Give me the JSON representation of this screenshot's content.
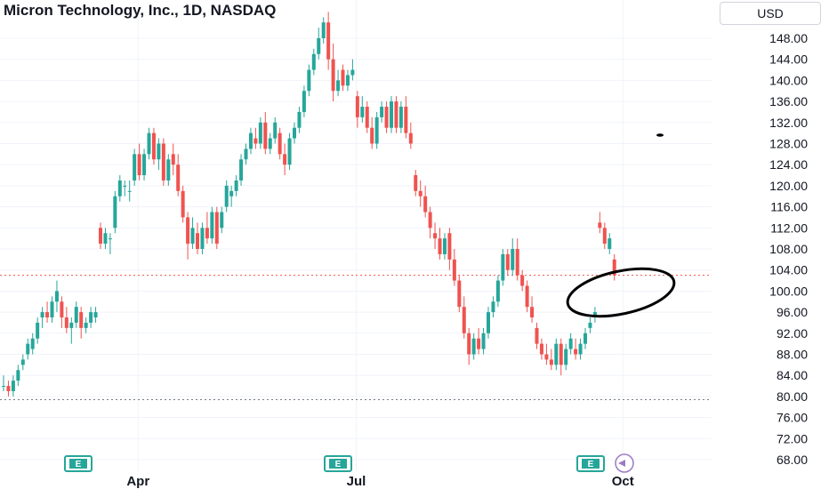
{
  "header": {
    "title": "Micron Technology, Inc., 1D, NASDAQ",
    "currency": "USD"
  },
  "colors": {
    "up": "#26a69a",
    "down": "#ef5350",
    "grid": "#f0f3fa",
    "text": "#131722",
    "price_line": "#ef5350",
    "dotted_line": "#787b86",
    "annotation": "#000000"
  },
  "event_badge_label": "E",
  "chart_data": {
    "type": "candlestick",
    "title": "Micron Technology, Inc., 1D, NASDAQ",
    "y_axis": {
      "min": 68,
      "max": 152,
      "ticks": [
        "148.00",
        "144.00",
        "140.00",
        "136.00",
        "132.00",
        "128.00",
        "124.00",
        "120.00",
        "116.00",
        "112.00",
        "108.00",
        "104.00",
        "100.00",
        "96.00",
        "92.00",
        "88.00",
        "84.00",
        "80.00",
        "76.00",
        "72.00",
        "68.00"
      ]
    },
    "x_axis": {
      "labels": [
        "Apr",
        "Jul",
        "Oct"
      ]
    },
    "horizontal_lines": [
      {
        "value": 103.0,
        "style": "dotted",
        "color_key": "price_line"
      },
      {
        "value": 79.4,
        "style": "dotted",
        "color_key": "dotted_line"
      }
    ],
    "grid": true,
    "candles": [
      [
        0,
        82,
        84,
        81,
        82
      ],
      [
        1,
        82,
        83,
        80,
        81
      ],
      [
        2,
        81,
        84,
        80,
        83
      ],
      [
        3,
        83,
        86,
        82,
        85
      ],
      [
        4,
        86,
        88,
        85,
        87
      ],
      [
        5,
        88,
        91,
        87,
        90
      ],
      [
        6,
        89,
        92,
        88,
        91
      ],
      [
        7,
        91,
        95,
        90,
        94
      ],
      [
        8,
        95,
        97,
        93,
        96
      ],
      [
        9,
        96,
        98,
        94,
        95
      ],
      [
        10,
        95,
        99,
        94,
        98
      ],
      [
        11,
        98,
        102,
        96,
        100
      ],
      [
        12,
        98,
        99,
        93,
        95
      ],
      [
        13,
        95,
        97,
        92,
        93
      ],
      [
        14,
        93,
        95,
        90,
        94
      ],
      [
        15,
        94,
        98,
        93,
        97
      ],
      [
        16,
        96,
        97,
        91,
        93
      ],
      [
        17,
        93,
        95,
        92,
        94
      ],
      [
        18,
        94,
        97,
        93,
        96
      ],
      [
        19,
        95,
        97,
        94,
        96
      ],
      [
        20,
        112,
        113,
        108,
        109
      ],
      [
        21,
        109,
        112,
        108,
        111
      ],
      [
        22,
        110,
        111,
        107,
        110
      ],
      [
        23,
        112,
        119,
        111,
        118
      ],
      [
        24,
        118,
        122,
        117,
        121
      ],
      [
        25,
        120,
        121,
        118,
        120
      ],
      [
        26,
        119,
        121,
        117,
        119
      ],
      [
        27,
        121,
        127,
        120,
        126
      ],
      [
        28,
        126,
        128,
        121,
        122
      ],
      [
        29,
        122,
        127,
        121,
        126
      ],
      [
        30,
        126,
        131,
        125,
        130
      ],
      [
        31,
        130,
        131,
        124,
        125
      ],
      [
        32,
        125,
        129,
        123,
        128
      ],
      [
        33,
        128,
        129,
        120,
        121
      ],
      [
        34,
        121,
        126,
        120,
        125
      ],
      [
        35,
        126,
        128,
        122,
        124
      ],
      [
        36,
        124,
        126,
        118,
        119
      ],
      [
        37,
        119,
        120,
        113,
        114
      ],
      [
        38,
        114,
        115,
        106,
        109
      ],
      [
        39,
        109,
        114,
        108,
        112
      ],
      [
        40,
        111,
        113,
        107,
        108
      ],
      [
        41,
        108,
        113,
        107,
        112
      ],
      [
        42,
        112,
        115,
        109,
        110
      ],
      [
        43,
        110,
        116,
        109,
        115
      ],
      [
        44,
        115,
        116,
        108,
        109
      ],
      [
        45,
        112,
        116,
        111,
        115
      ],
      [
        46,
        116,
        121,
        115,
        120
      ],
      [
        47,
        118,
        120,
        116,
        119
      ],
      [
        48,
        119,
        122,
        118,
        121
      ],
      [
        49,
        121,
        126,
        120,
        125
      ],
      [
        50,
        125,
        128,
        124,
        127
      ],
      [
        51,
        127,
        131,
        126,
        130
      ],
      [
        52,
        129,
        131,
        127,
        128
      ],
      [
        53,
        128,
        133,
        127,
        132
      ],
      [
        54,
        132,
        134,
        126,
        127
      ],
      [
        55,
        127,
        130,
        126,
        129
      ],
      [
        56,
        129,
        133,
        128,
        132
      ],
      [
        57,
        130,
        131,
        125,
        126
      ],
      [
        58,
        126,
        128,
        122,
        124
      ],
      [
        59,
        124,
        130,
        123,
        129
      ],
      [
        60,
        129,
        132,
        128,
        131
      ],
      [
        61,
        131,
        135,
        130,
        134
      ],
      [
        62,
        134,
        139,
        133,
        138
      ],
      [
        63,
        138,
        143,
        137,
        142
      ],
      [
        64,
        142,
        146,
        141,
        145
      ],
      [
        65,
        145,
        150,
        144,
        148
      ],
      [
        66,
        148,
        152,
        147,
        151
      ],
      [
        67,
        151,
        153,
        142,
        144
      ],
      [
        68,
        144,
        147,
        136,
        138
      ],
      [
        69,
        138,
        142,
        137,
        140
      ],
      [
        70,
        142,
        143,
        138,
        139
      ],
      [
        71,
        139,
        142,
        138,
        141
      ],
      [
        72,
        141,
        144,
        140,
        142
      ],
      [
        73,
        137,
        138,
        131,
        133
      ],
      [
        74,
        133,
        137,
        132,
        135
      ],
      [
        75,
        135,
        136,
        130,
        131
      ],
      [
        76,
        131,
        133,
        127,
        128
      ],
      [
        77,
        128,
        134,
        127,
        133
      ],
      [
        78,
        133,
        136,
        132,
        135
      ],
      [
        79,
        135,
        136,
        130,
        131
      ],
      [
        80,
        131,
        137,
        130,
        136
      ],
      [
        81,
        136,
        137,
        130,
        131
      ],
      [
        82,
        131,
        136,
        130,
        135
      ],
      [
        83,
        135,
        137,
        129,
        130
      ],
      [
        84,
        130,
        132,
        127,
        128
      ],
      [
        85,
        122,
        123,
        118,
        119
      ],
      [
        86,
        119,
        121,
        116,
        118
      ],
      [
        87,
        118,
        120,
        114,
        115
      ],
      [
        88,
        115,
        116,
        110,
        112
      ],
      [
        89,
        111,
        113,
        108,
        110
      ],
      [
        90,
        110,
        112,
        106,
        107
      ],
      [
        91,
        107,
        111,
        106,
        110
      ],
      [
        92,
        111,
        112,
        104,
        106
      ],
      [
        93,
        106,
        108,
        101,
        102
      ],
      [
        94,
        102,
        103,
        96,
        97
      ],
      [
        95,
        97,
        99,
        91,
        92
      ],
      [
        96,
        92,
        93,
        86,
        88
      ],
      [
        97,
        88,
        92,
        87,
        91
      ],
      [
        98,
        91,
        93,
        88,
        89
      ],
      [
        99,
        89,
        93,
        88,
        92
      ],
      [
        100,
        92,
        97,
        91,
        96
      ],
      [
        101,
        96,
        99,
        95,
        98
      ],
      [
        102,
        98,
        103,
        97,
        102
      ],
      [
        103,
        102,
        108,
        101,
        107
      ],
      [
        104,
        107,
        108,
        103,
        104
      ],
      [
        105,
        104,
        110,
        103,
        108
      ],
      [
        106,
        108,
        110,
        102,
        103
      ],
      [
        107,
        103,
        104,
        100,
        101
      ],
      [
        108,
        101,
        102,
        96,
        97
      ],
      [
        109,
        97,
        99,
        94,
        95
      ],
      [
        110,
        93,
        94,
        89,
        90
      ],
      [
        111,
        90,
        91,
        87,
        88
      ],
      [
        112,
        88,
        90,
        86,
        87
      ],
      [
        113,
        87,
        89,
        85,
        86
      ],
      [
        114,
        86,
        91,
        85,
        90
      ],
      [
        115,
        90,
        91,
        84,
        86
      ],
      [
        116,
        86,
        90,
        85,
        89
      ],
      [
        117,
        89,
        92,
        88,
        91
      ],
      [
        118,
        89,
        91,
        87,
        88
      ],
      [
        119,
        88,
        91,
        87,
        90
      ],
      [
        120,
        90,
        93,
        89,
        92
      ],
      [
        121,
        93,
        95,
        92,
        94
      ],
      [
        122,
        95,
        97,
        94,
        96
      ],
      [
        123,
        113,
        115,
        111,
        112
      ],
      [
        124,
        112,
        113,
        108,
        109
      ],
      [
        125,
        108,
        111,
        107,
        110
      ],
      [
        126,
        106,
        107,
        102,
        103
      ]
    ]
  }
}
